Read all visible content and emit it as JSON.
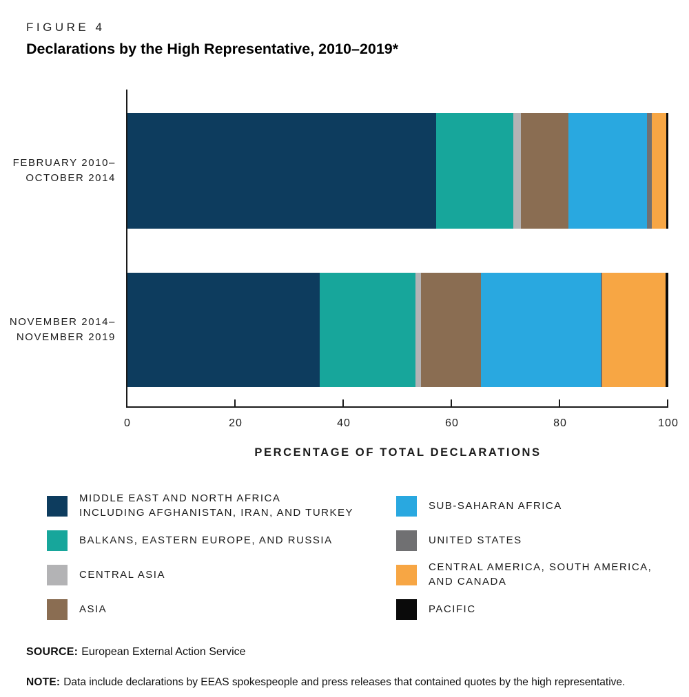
{
  "figure": {
    "label": "FIGURE 4",
    "title": "Declarations by the High Representative, 2010–2019*"
  },
  "chart_data": {
    "type": "bar",
    "subtype": "horizontal-stacked",
    "unit": "percent",
    "xlabel": "PERCENTAGE OF TOTAL DECLARATIONS",
    "xlim": [
      0,
      100
    ],
    "xticks": [
      0,
      20,
      40,
      60,
      80,
      100
    ],
    "grid": false,
    "legend_position": "below",
    "regions": [
      {
        "key": "mena",
        "legend_lines": [
          "MIDDLE EAST AND NORTH AFRICA",
          "INCLUDING AFGHANISTAN, IRAN, AND TURKEY"
        ],
        "color": "#0d3c5e"
      },
      {
        "key": "balkans-eastern-europe-russia",
        "legend_lines": [
          "BALKANS, EASTERN EUROPE, AND RUSSIA"
        ],
        "color": "#17a69b"
      },
      {
        "key": "central-asia",
        "legend_lines": [
          "CENTRAL ASIA"
        ],
        "color": "#b3b3b5"
      },
      {
        "key": "asia",
        "legend_lines": [
          "ASIA"
        ],
        "color": "#8a6d52"
      },
      {
        "key": "sub-saharan-africa",
        "legend_lines": [
          "SUB-SAHARAN AFRICA"
        ],
        "color": "#29a8e0"
      },
      {
        "key": "united-states",
        "legend_lines": [
          "UNITED STATES"
        ],
        "color": "#707072"
      },
      {
        "key": "central-america-south-america-canada",
        "legend_lines": [
          "CENTRAL AMERICA, SOUTH AMERICA,",
          "AND CANADA"
        ],
        "color": "#f7a644"
      },
      {
        "key": "pacific",
        "legend_lines": [
          "PACIFIC"
        ],
        "color": "#0a0a0a"
      }
    ],
    "series": [
      {
        "name": "FEBRUARY 2010–OCTOBER 2014",
        "label_lines": [
          "FEBRUARY 2010–",
          "OCTOBER 2014"
        ],
        "values": [
          57.1,
          14.2,
          1.4,
          8.8,
          14.5,
          0.9,
          2.7,
          0.4
        ]
      },
      {
        "name": "NOVEMBER 2014–NOVEMBER 2019",
        "label_lines": [
          "NOVEMBER 2014–",
          "NOVEMBER 2019"
        ],
        "values": [
          35.5,
          17.8,
          1.0,
          11.1,
          22.1,
          0.3,
          11.7,
          0.5
        ]
      }
    ]
  },
  "source": {
    "label": "SOURCE:",
    "text": "European External Action Service"
  },
  "note": {
    "label": "NOTE:",
    "text": "Data include declarations by EEAS spokespeople and press releases that contained quotes by the high representative."
  }
}
